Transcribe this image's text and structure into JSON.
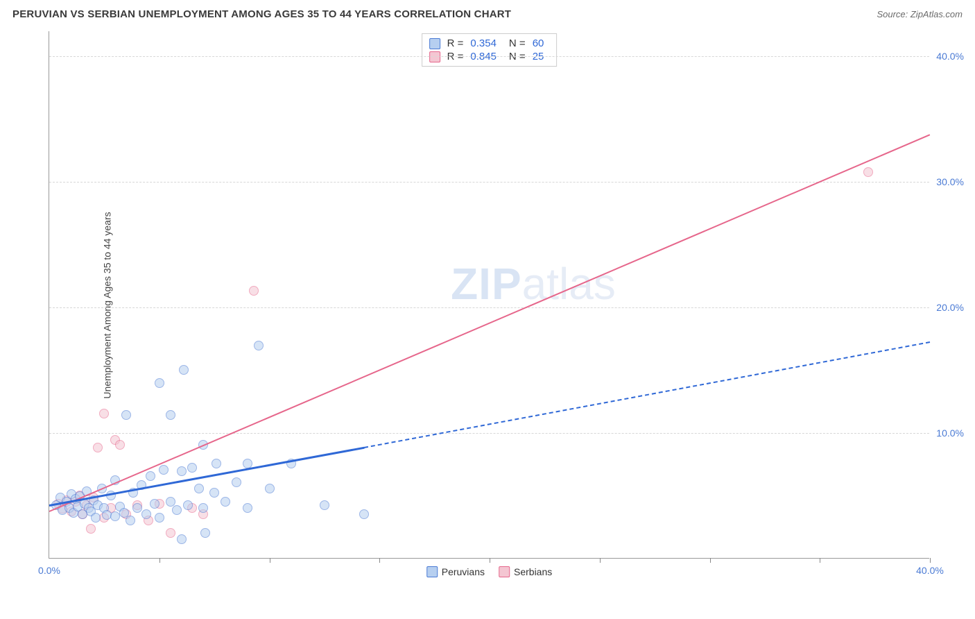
{
  "header": {
    "title": "PERUVIAN VS SERBIAN UNEMPLOYMENT AMONG AGES 35 TO 44 YEARS CORRELATION CHART",
    "source_prefix": "Source: ",
    "source_name": "ZipAtlas.com"
  },
  "watermark": {
    "part1": "ZIP",
    "part2": "atlas"
  },
  "chart": {
    "y_label": "Unemployment Among Ages 35 to 44 years",
    "xlim": [
      0,
      40
    ],
    "ylim": [
      0,
      42
    ],
    "y_ticks": [
      10,
      20,
      30,
      40
    ],
    "y_tick_labels": [
      "10.0%",
      "20.0%",
      "30.0%",
      "40.0%"
    ],
    "x_ticks_minor": [
      5,
      10,
      15,
      20,
      25,
      30,
      35,
      40
    ],
    "x_tick_labels": [
      {
        "pos": 0,
        "label": "0.0%"
      },
      {
        "pos": 40,
        "label": "40.0%"
      }
    ],
    "grid_color": "#d7d7d7",
    "tick_label_color": "#4a7ad4",
    "background_color": "#ffffff",
    "axis_color": "#999999",
    "point_radius": 7,
    "point_border_width": 1.2,
    "series": {
      "peruvians": {
        "label": "Peruvians",
        "fill_color": "#b6cff0",
        "border_color": "#4a7ad4",
        "line_color": "#2f68d6",
        "fill_opacity": 0.55,
        "R": "0.354",
        "N": "60",
        "trend": {
          "x1": 0,
          "y1": 4.3,
          "x2": 14.3,
          "y2": 8.9,
          "solid_width": 3
        },
        "trend_ext": {
          "x1": 14.3,
          "y1": 8.9,
          "x2": 40,
          "y2": 17.3
        },
        "points": [
          [
            0.3,
            4.2
          ],
          [
            0.5,
            4.8
          ],
          [
            0.6,
            3.8
          ],
          [
            0.8,
            4.5
          ],
          [
            0.9,
            4.0
          ],
          [
            1.0,
            5.1
          ],
          [
            1.1,
            3.6
          ],
          [
            1.2,
            4.7
          ],
          [
            1.3,
            4.1
          ],
          [
            1.4,
            4.9
          ],
          [
            1.5,
            3.5
          ],
          [
            1.6,
            4.3
          ],
          [
            1.7,
            5.3
          ],
          [
            1.8,
            4.0
          ],
          [
            1.9,
            3.7
          ],
          [
            2.0,
            4.6
          ],
          [
            2.1,
            3.2
          ],
          [
            2.2,
            4.2
          ],
          [
            2.4,
            5.5
          ],
          [
            2.5,
            4.0
          ],
          [
            2.6,
            3.4
          ],
          [
            2.8,
            5.0
          ],
          [
            3.0,
            3.3
          ],
          [
            3.0,
            6.2
          ],
          [
            3.2,
            4.1
          ],
          [
            3.4,
            3.6
          ],
          [
            3.5,
            11.4
          ],
          [
            3.7,
            3.0
          ],
          [
            3.8,
            5.2
          ],
          [
            4.0,
            4.0
          ],
          [
            4.2,
            5.8
          ],
          [
            4.4,
            3.5
          ],
          [
            4.6,
            6.5
          ],
          [
            4.8,
            4.3
          ],
          [
            5.0,
            3.2
          ],
          [
            5.0,
            13.9
          ],
          [
            5.2,
            7.0
          ],
          [
            5.5,
            4.5
          ],
          [
            5.5,
            11.4
          ],
          [
            5.8,
            3.8
          ],
          [
            6.0,
            6.9
          ],
          [
            6.0,
            1.5
          ],
          [
            6.1,
            15.0
          ],
          [
            6.3,
            4.2
          ],
          [
            6.5,
            7.2
          ],
          [
            6.8,
            5.5
          ],
          [
            7.0,
            4.0
          ],
          [
            7.0,
            9.0
          ],
          [
            7.1,
            2.0
          ],
          [
            7.5,
            5.2
          ],
          [
            7.6,
            7.5
          ],
          [
            8.0,
            4.5
          ],
          [
            8.5,
            6.0
          ],
          [
            9.0,
            7.5
          ],
          [
            9.0,
            4.0
          ],
          [
            9.5,
            16.9
          ],
          [
            10.0,
            5.5
          ],
          [
            11.0,
            7.5
          ],
          [
            12.5,
            4.2
          ],
          [
            14.3,
            3.5
          ]
        ]
      },
      "serbians": {
        "label": "Serbians",
        "fill_color": "#f4c6d2",
        "border_color": "#e6668b",
        "line_color": "#e6668b",
        "fill_opacity": 0.55,
        "R": "0.845",
        "N": "25",
        "trend": {
          "x1": 0,
          "y1": 3.8,
          "x2": 40,
          "y2": 33.8,
          "solid_width": 2
        },
        "points": [
          [
            0.4,
            4.3
          ],
          [
            0.6,
            3.9
          ],
          [
            0.8,
            4.6
          ],
          [
            1.0,
            3.7
          ],
          [
            1.2,
            4.5
          ],
          [
            1.4,
            5.0
          ],
          [
            1.5,
            3.5
          ],
          [
            1.7,
            4.2
          ],
          [
            1.9,
            2.3
          ],
          [
            2.0,
            4.8
          ],
          [
            2.2,
            8.8
          ],
          [
            2.5,
            3.2
          ],
          [
            2.5,
            11.5
          ],
          [
            2.8,
            4.0
          ],
          [
            3.0,
            9.4
          ],
          [
            3.2,
            9.0
          ],
          [
            3.5,
            3.5
          ],
          [
            4.0,
            4.2
          ],
          [
            4.5,
            3.0
          ],
          [
            5.0,
            4.3
          ],
          [
            5.5,
            2.0
          ],
          [
            6.5,
            4.0
          ],
          [
            7.0,
            3.5
          ],
          [
            9.3,
            21.3
          ],
          [
            37.2,
            30.7
          ]
        ]
      }
    },
    "stats_box": {
      "R_label": "R =",
      "N_label": "N ="
    },
    "legend": {
      "series_order": [
        "peruvians",
        "serbians"
      ]
    }
  }
}
